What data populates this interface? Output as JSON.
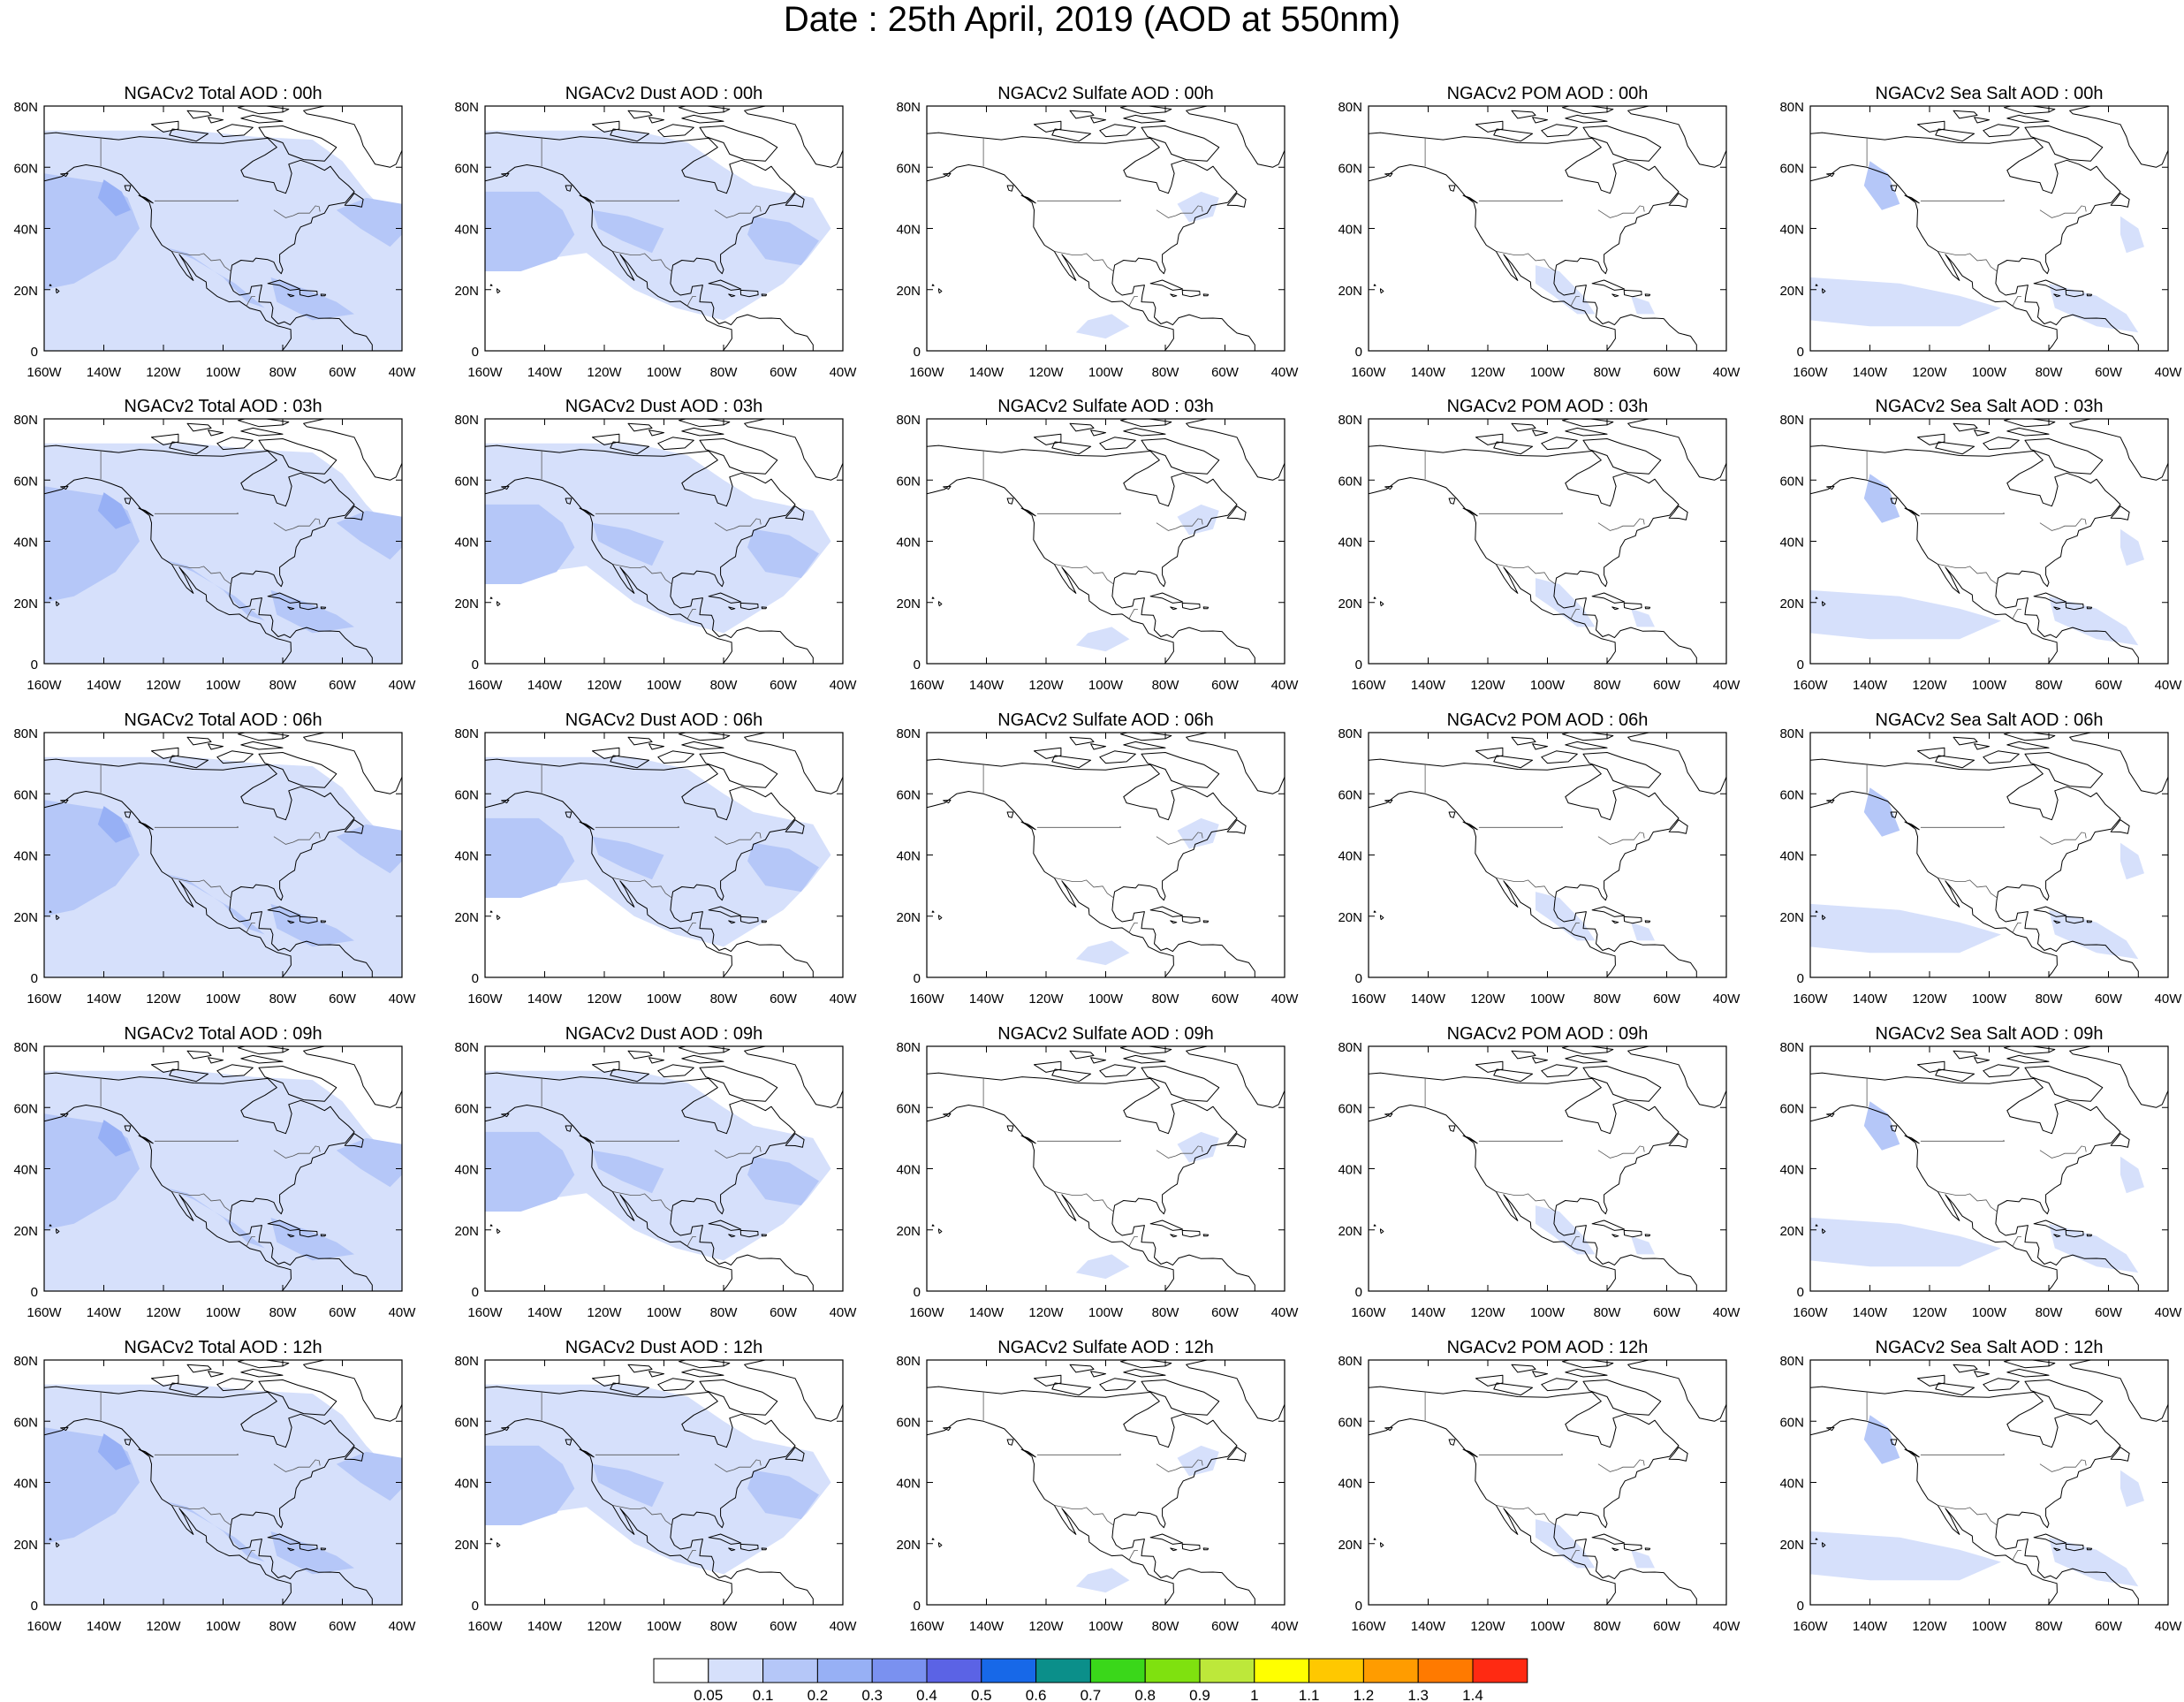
{
  "title": "Date : 25th April, 2019 (AOD at 550nm)",
  "map": {
    "lat_ticks": [
      "80N",
      "60N",
      "40N",
      "20N",
      "0"
    ],
    "lon_ticks": [
      "160W",
      "140W",
      "120W",
      "100W",
      "80W",
      "60W",
      "40W"
    ],
    "lon_range": [
      -160,
      -40
    ],
    "lat_range": [
      0,
      80
    ]
  },
  "rows": [
    [
      "NGACv2 Total AOD : 00h",
      "NGACv2 Dust AOD : 00h",
      "NGACv2 Sulfate AOD : 00h",
      "NGACv2 POM AOD : 00h",
      "NGACv2 Sea Salt AOD : 00h"
    ],
    [
      "NGACv2 Total AOD : 03h",
      "NGACv2 Dust AOD : 03h",
      "NGACv2 Sulfate AOD : 03h",
      "NGACv2 POM AOD : 03h",
      "NGACv2 Sea Salt AOD : 03h"
    ],
    [
      "NGACv2 Total AOD : 06h",
      "NGACv2 Dust AOD : 06h",
      "NGACv2 Sulfate AOD : 06h",
      "NGACv2 POM AOD : 06h",
      "NGACv2 Sea Salt AOD : 06h"
    ],
    [
      "NGACv2 Total AOD : 09h",
      "NGACv2 Dust AOD : 09h",
      "NGACv2 Sulfate AOD : 09h",
      "NGACv2 POM AOD : 09h",
      "NGACv2 Sea Salt  AOD : 09h"
    ],
    [
      "NGACv2 Total AOD  : 12h",
      "NGACv2 Dust AOD : 12h",
      "NGACv2 Sulfate AOD : 12h",
      "NGACv2 POM  AOD : 12h",
      "NGACv2 Sea Salt  AOD : 12h"
    ]
  ],
  "colorbar": {
    "labels": [
      "0.05",
      "0.1",
      "0.2",
      "0.3",
      "0.4",
      "0.5",
      "0.6",
      "0.7",
      "0.8",
      "0.9",
      "1",
      "1.1",
      "1.2",
      "1.3",
      "1.4"
    ],
    "colors": [
      "#ffffff",
      "#d6e0fb",
      "#b5c7f8",
      "#97b0f5",
      "#7a91f0",
      "#5b63e5",
      "#1768e8",
      "#0b8f8a",
      "#3ad71a",
      "#7fe10f",
      "#bde83a",
      "#ffff00",
      "#ffc800",
      "#ff9c00",
      "#ff7a00",
      "#ff2a12"
    ]
  },
  "fill_colors": {
    "light": "#d6e0fb",
    "medium": "#b5c7f8",
    "strong": "#97b0f5"
  }
}
